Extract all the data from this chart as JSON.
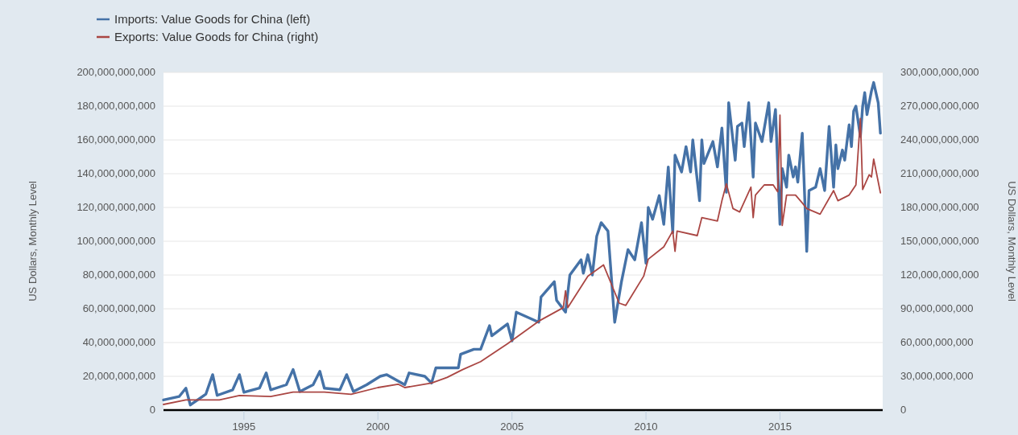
{
  "chart_data": {
    "type": "line",
    "ylabel": "US Dollars, Monthly Level",
    "y2label": "US Dollars, Monthly Level",
    "legend": "top left",
    "grid": "y",
    "line_style": "solid",
    "xlim": [
      "1992-01",
      "2018-11"
    ],
    "xticks": [
      "1995",
      "2000",
      "2005",
      "2010",
      "2015"
    ],
    "ylim": [
      0,
      200000000000
    ],
    "yticks": [
      {
        "value": 0,
        "label": "0"
      },
      {
        "value": 20000000000,
        "label": "20,000,000,000"
      },
      {
        "value": 40000000000,
        "label": "40,000,000,000"
      },
      {
        "value": 60000000000,
        "label": "60,000,000,000"
      },
      {
        "value": 80000000000,
        "label": "80,000,000,000"
      },
      {
        "value": 100000000000,
        "label": "100,000,000,000"
      },
      {
        "value": 120000000000,
        "label": "120,000,000,000"
      },
      {
        "value": 140000000000,
        "label": "140,000,000,000"
      },
      {
        "value": 160000000000,
        "label": "160,000,000,000"
      },
      {
        "value": 180000000000,
        "label": "180,000,000,000"
      },
      {
        "value": 200000000000,
        "label": "200,000,000,000"
      }
    ],
    "y2lim": [
      0,
      300000000000
    ],
    "y2ticks": [
      {
        "value": 0,
        "label": "0"
      },
      {
        "value": 30000000000,
        "label": "30,000,000,000"
      },
      {
        "value": 60000000000,
        "label": "60,000,000,000"
      },
      {
        "value": 90000000000,
        "label": "90,000,000,000"
      },
      {
        "value": 120000000000,
        "label": "120,000,000,000"
      },
      {
        "value": 150000000000,
        "label": "150,000,000,000"
      },
      {
        "value": 180000000000,
        "label": "180,000,000,000"
      },
      {
        "value": 210000000000,
        "label": "210,000,000,000"
      },
      {
        "value": 240000000000,
        "label": "240,000,000,000"
      },
      {
        "value": 270000000000,
        "label": "270,000,000,000"
      },
      {
        "value": 300000000000,
        "label": "300,000,000,000"
      }
    ],
    "series": [
      {
        "name": "Imports: Value Goods for China (left)",
        "color": "#4572a7",
        "axis": "y",
        "x": [
          "1992-01",
          "1992-08",
          "1992-11",
          "1993-01",
          "1993-08",
          "1993-11",
          "1994-01",
          "1994-08",
          "1994-11",
          "1995-01",
          "1995-08",
          "1995-11",
          "1996-01",
          "1996-08",
          "1996-11",
          "1997-02",
          "1997-08",
          "1997-11",
          "1998-01",
          "1998-08",
          "1998-11",
          "1999-02",
          "1999-08",
          "2000-02",
          "2000-05",
          "2001-01",
          "2001-03",
          "2001-10",
          "2002-01",
          "2002-03",
          "2003-01",
          "2003-02",
          "2003-08",
          "2003-11",
          "2004-03",
          "2004-04",
          "2004-11",
          "2005-01",
          "2005-03",
          "2006-01",
          "2006-02",
          "2006-08",
          "2006-09",
          "2007-01",
          "2007-03",
          "2007-08",
          "2007-09",
          "2007-11",
          "2008-01",
          "2008-03",
          "2008-05",
          "2008-08",
          "2008-11",
          "2009-02",
          "2009-05",
          "2009-08",
          "2009-11",
          "2010-01",
          "2010-02",
          "2010-04",
          "2010-07",
          "2010-09",
          "2010-11",
          "2011-01",
          "2011-02",
          "2011-05",
          "2011-07",
          "2011-09",
          "2011-10",
          "2012-01",
          "2012-02",
          "2012-03",
          "2012-07",
          "2012-09",
          "2012-11",
          "2013-01",
          "2013-02",
          "2013-05",
          "2013-06",
          "2013-08",
          "2013-09",
          "2013-11",
          "2014-01",
          "2014-02",
          "2014-05",
          "2014-08",
          "2014-09",
          "2014-11",
          "2015-01",
          "2015-02",
          "2015-04",
          "2015-05",
          "2015-07",
          "2015-08",
          "2015-09",
          "2015-11",
          "2016-01",
          "2016-02",
          "2016-05",
          "2016-07",
          "2016-09",
          "2016-11",
          "2017-01",
          "2017-02",
          "2017-03",
          "2017-05",
          "2017-06",
          "2017-08",
          "2017-09",
          "2017-10",
          "2017-11",
          "2018-01",
          "2018-02",
          "2018-03",
          "2018-04",
          "2018-06",
          "2018-07",
          "2018-09",
          "2018-10"
        ],
        "values": [
          6000000000.0,
          8000000000.0,
          13000000000.0,
          3000000000.0,
          9500000000.0,
          21000000000.0,
          8700000000.0,
          12000000000.0,
          21000000000.0,
          10500000000.0,
          13000000000.0,
          22000000000.0,
          12000000000.0,
          15000000000.0,
          24000000000.0,
          11000000000.0,
          15000000000.0,
          23000000000.0,
          13000000000.0,
          12000000000.0,
          21000000000.0,
          11000000000.0,
          15000000000.0,
          20000000000.0,
          21000000000.0,
          15000000000.0,
          22000000000.0,
          20000000000.0,
          16000000000.0,
          25000000000.0,
          25000000000.0,
          33000000000.0,
          36000000000.0,
          36000000000.0,
          50000000000.0,
          44000000000.0,
          51000000000.0,
          41000000000.0,
          58000000000.0,
          52000000000.0,
          67000000000.0,
          76000000000.0,
          65000000000.0,
          58000000000.0,
          80000000000.0,
          89000000000.0,
          81000000000.0,
          92000000000.0,
          80000000000.0,
          103000000000.0,
          111000000000.0,
          106000000000.0,
          52000000000.0,
          76000000000.0,
          95000000000.0,
          89000000000.0,
          111000000000.0,
          87000000000.0,
          120000000000.0,
          113000000000.0,
          127000000000.0,
          110000000000.0,
          144000000000.0,
          105000000000.0,
          151000000000.0,
          141000000000.0,
          156000000000.0,
          141000000000.0,
          160000000000.0,
          124000000000.0,
          160000000000.0,
          146000000000.0,
          159000000000.0,
          144000000000.0,
          167000000000.0,
          129000000000.0,
          182000000000.0,
          148000000000.0,
          168000000000.0,
          170000000000.0,
          156000000000.0,
          182000000000.0,
          138000000000.0,
          170000000000.0,
          159000000000.0,
          182000000000.0,
          159000000000.0,
          178000000000.0,
          110000000000.0,
          143000000000.0,
          132000000000.0,
          151000000000.0,
          138000000000.0,
          144000000000.0,
          135000000000.0,
          164000000000.0,
          94000000000.0,
          130000000000.0,
          132000000000.0,
          143000000000.0,
          130000000000.0,
          168000000000.0,
          132000000000.0,
          157000000000.0,
          143000000000.0,
          154000000000.0,
          148000000000.0,
          169000000000.0,
          156000000000.0,
          177000000000.0,
          180000000000.0,
          162000000000.0,
          180000000000.0,
          188000000000.0,
          175000000000.0,
          189000000000.0,
          194000000000.0,
          182000000000.0,
          164000000000.0
        ]
      },
      {
        "name": "Exports: Value Goods for China (right)",
        "color": "#aa4643",
        "axis": "y2",
        "x": [
          "1992-01",
          "1992-11",
          "1994-02",
          "1994-11",
          "1996-01",
          "1996-11",
          "1998-01",
          "1999-01",
          "2000-01",
          "2000-10",
          "2001-01",
          "2002-01",
          "2002-08",
          "2003-03",
          "2003-11",
          "2004-11",
          "2006-01",
          "2006-12",
          "2007-01",
          "2007-02",
          "2007-11",
          "2008-06",
          "2009-01",
          "2009-04",
          "2009-12",
          "2010-02",
          "2010-09",
          "2011-01",
          "2011-02",
          "2011-03",
          "2011-12",
          "2012-02",
          "2012-09",
          "2012-11",
          "2013-01",
          "2013-04",
          "2013-07",
          "2013-12",
          "2014-01",
          "2014-02",
          "2014-06",
          "2014-10",
          "2014-12",
          "2015-01",
          "2015-02",
          "2015-04",
          "2015-08",
          "2015-11",
          "2016-01",
          "2016-07",
          "2017-01",
          "2017-03",
          "2017-08",
          "2017-11",
          "2018-01",
          "2018-02",
          "2018-05",
          "2018-06",
          "2018-07",
          "2018-10"
        ],
        "values": [
          5000000000.0,
          9000000000.0,
          9000000000.0,
          13000000000.0,
          12000000000.0,
          16000000000.0,
          16000000000.0,
          14000000000.0,
          20000000000.0,
          23000000000.0,
          20000000000.0,
          24000000000.0,
          29000000000.0,
          36000000000.0,
          43000000000.0,
          59000000000.0,
          79000000000.0,
          91000000000.0,
          106000000000.0,
          91000000000.0,
          119000000000.0,
          129000000000.0,
          95000000000.0,
          93000000000.0,
          119000000000.0,
          134000000000.0,
          145000000000.0,
          159000000000.0,
          141000000000.0,
          159000000000.0,
          155000000000.0,
          171000000000.0,
          168000000000.0,
          186000000000.0,
          201000000000.0,
          179000000000.0,
          176000000000.0,
          198000000000.0,
          171000000000.0,
          191000000000.0,
          200000000000.0,
          200000000000.0,
          194000000000.0,
          262000000000.0,
          164000000000.0,
          191000000000.0,
          191000000000.0,
          184000000000.0,
          179000000000.0,
          174000000000.0,
          195000000000.0,
          186000000000.0,
          191000000000.0,
          200000000000.0,
          259000000000.0,
          196000000000.0,
          209000000000.0,
          207000000000.0,
          223000000000.0,
          193000000000.0
        ]
      }
    ]
  }
}
